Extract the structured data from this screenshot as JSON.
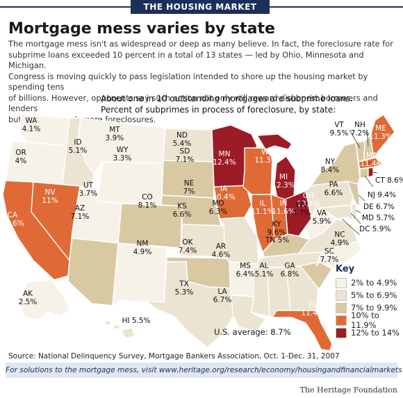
{
  "banner": "THE HOUSING MARKET",
  "headline": "Mortgage mess varies by state",
  "intro": [
    "The mortgage mess isn't as widespread or deep as many believe.  In fact, the foreclosure rate for",
    "subprime loans exceeded 10 percent in a total of 13 states — led by Ohio, Minnesota and Michigan.",
    "Congress is moving quickly to pass legislation intended to shore up the housing market by spending tens",
    "of billions.  However, opponents say such action not only will reward dishonest borrowers and lenders",
    "but actually spark more foreclosures."
  ],
  "subtitle": [
    "About one in 10 outstanding mortgages are subprime loans.",
    "Percent of subprimes in process of foreclosure, by state:"
  ],
  "colors": {
    "bin1": "#f6f2e8",
    "bin2": "#ece4d2",
    "bin3": "#d9c9a3",
    "bin4": "#e06a35",
    "bin5": "#9c1c26",
    "border": "#ffffff",
    "banner": "#1c2f5a"
  },
  "key": {
    "title": "Key",
    "bins": [
      {
        "label": "2% to 4.9%",
        "color": "#f6f2e8"
      },
      {
        "label": "5% to 6.9%",
        "color": "#ece4d2"
      },
      {
        "label": "7% to 9.9%",
        "color": "#d9c9a3"
      },
      {
        "label": "10% to 11.9%",
        "color": "#e06a35"
      },
      {
        "label": "12% to 14%",
        "color": "#9c1c26"
      }
    ]
  },
  "states": {
    "WA": {
      "name": "WA",
      "rate": "4.1%"
    },
    "OR": {
      "name": "OR",
      "rate": "4%"
    },
    "CA": {
      "name": "CA",
      "rate": "10.6%"
    },
    "NV": {
      "name": "NV",
      "rate": "11%"
    },
    "ID": {
      "name": "ID",
      "rate": "5.1%"
    },
    "MT": {
      "name": "MT",
      "rate": "3.9%"
    },
    "WY": {
      "name": "WY",
      "rate": "3.3%"
    },
    "UT": {
      "name": "UT",
      "rate": "3.7%"
    },
    "AZ": {
      "name": "AZ",
      "rate": "7.1%"
    },
    "CO": {
      "name": "CO",
      "rate": "8.1%"
    },
    "NM": {
      "name": "NM",
      "rate": "4.9%"
    },
    "ND": {
      "name": "ND",
      "rate": "5.4%"
    },
    "SD": {
      "name": "SD",
      "rate": "7.1%"
    },
    "NE": {
      "name": "NE",
      "rate": "7%"
    },
    "KS": {
      "name": "KS",
      "rate": "6.6%"
    },
    "OK": {
      "name": "OK",
      "rate": "7.4%"
    },
    "TX": {
      "name": "TX",
      "rate": "5.3%"
    },
    "MN": {
      "name": "MN",
      "rate": "12.4%"
    },
    "IA": {
      "name": "IA",
      "rate": "10.4%"
    },
    "MO": {
      "name": "MO",
      "rate": "6.3%"
    },
    "AR": {
      "name": "AR",
      "rate": "4.6%"
    },
    "LA": {
      "name": "LA",
      "rate": "6.7%"
    },
    "WI": {
      "name": "WI",
      "rate": "11.3%"
    },
    "IL": {
      "name": "IL",
      "rate": "11.1%"
    },
    "MI": {
      "name": "MI",
      "rate": "12.3%"
    },
    "IN": {
      "name": "IN",
      "rate": "11.6%"
    },
    "OH": {
      "name": "OH",
      "rate": "13.7%"
    },
    "KY": {
      "name": "KY",
      "rate": "9.6%"
    },
    "TN": {
      "name": "TN",
      "rate": "5%"
    },
    "MS": {
      "name": "MS",
      "rate": "6.4%"
    },
    "AL": {
      "name": "AL",
      "rate": "5.1%"
    },
    "GA": {
      "name": "GA",
      "rate": "6.8%"
    },
    "FL": {
      "name": "FL",
      "rate": "11.4%"
    },
    "SC": {
      "name": "SC",
      "rate": "7.7%"
    },
    "NC": {
      "name": "NC",
      "rate": "4.9%"
    },
    "VA": {
      "name": "VA",
      "rate": "5.9%"
    },
    "WV": {
      "name": "WV",
      "rate": "4.7%"
    },
    "PA": {
      "name": "PA",
      "rate": "6.6%"
    },
    "NY": {
      "name": "NY",
      "rate": "8.4%"
    },
    "VT": {
      "name": "VT",
      "rate": "9.5%"
    },
    "NH": {
      "name": "NH",
      "rate": "7.2%"
    },
    "ME": {
      "name": "ME",
      "rate": "11.3%"
    },
    "MA": {
      "name": "MA",
      "rate": "11.4%"
    },
    "RI": {
      "name": "RI",
      "rate": "12.2%"
    },
    "CT": {
      "name": "CT",
      "rate": "8.6%"
    },
    "NJ": {
      "name": "NJ",
      "rate": "9.4%"
    },
    "DE": {
      "name": "DE",
      "rate": "6.7%"
    },
    "MD": {
      "name": "MD",
      "rate": "5.7%"
    },
    "DC": {
      "name": "DC",
      "rate": "5.9%"
    },
    "AK": {
      "name": "AK",
      "rate": "2.5%"
    },
    "HI": {
      "name": "HI",
      "rate": "5.5%"
    }
  },
  "us_average": "U.S. average: 8.7%",
  "source": "Source: National Delinquency Survey, Mortgage Bankers Association, Oct. 1-Dec. 31, 2007",
  "footer_link": "For solutions to the mortgage mess, visit www.heritage.org/research/economy/housingandfinancialmarkets",
  "credit": "The Heritage Foundation"
}
